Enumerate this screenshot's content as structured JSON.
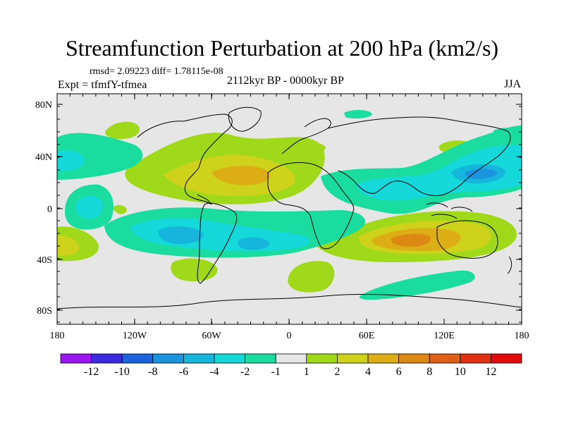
{
  "title": "Streamfunction Perturbation at 200 hPa (km2/s)",
  "stats": "rmsd= 2.09223 diff= 1.78115e-08",
  "experiment": "Expt = tfmfY-tfmea",
  "period": "2112kyr BP - 0000kyr BP",
  "season": "JJA",
  "lat_ticks": [
    "80N",
    "40N",
    "0",
    "40S",
    "80S"
  ],
  "lon_ticks": [
    "180",
    "120W",
    "60W",
    "0",
    "60E",
    "120E",
    "180"
  ],
  "colorbar": {
    "labels": [
      "-12",
      "-10",
      "-8",
      "-6",
      "-4",
      "-2",
      "-1",
      "1",
      "2",
      "4",
      "6",
      "8",
      "10",
      "12"
    ],
    "colors": [
      "#9a15ee",
      "#3c2ae0",
      "#1c63df",
      "#1b94dd",
      "#16b6dc",
      "#14d8da",
      "#1adc9e",
      "#e6e6e6",
      "#9fd91a",
      "#cfd21b",
      "#dcad14",
      "#dc8814",
      "#de5f16",
      "#e03210",
      "#e20a0a"
    ]
  }
}
